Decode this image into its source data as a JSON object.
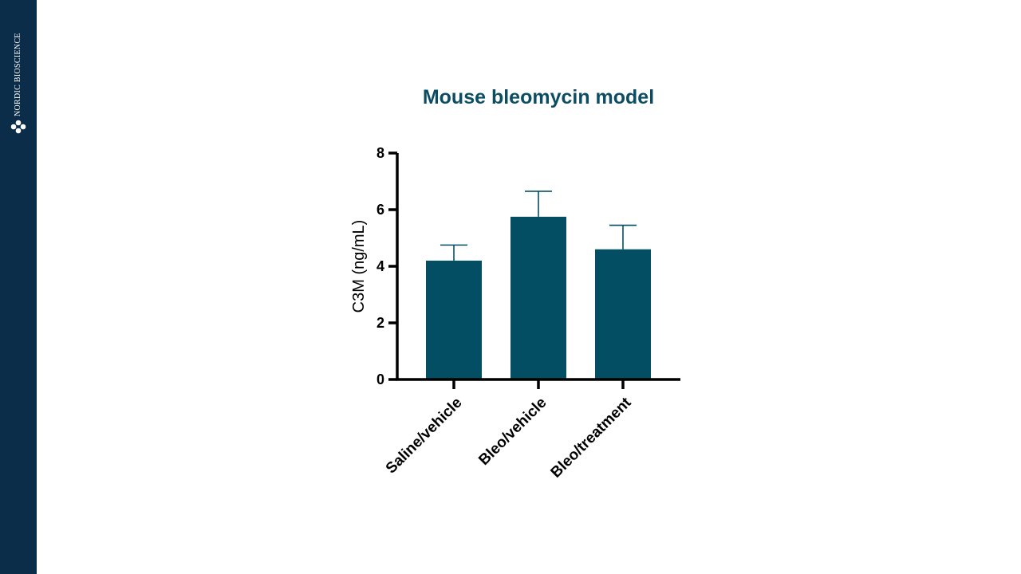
{
  "brand": {
    "name": "NORDIC BIOSCIENCE",
    "logo_icon": "molecule-logo-icon"
  },
  "colors": {
    "sidebar": "#0b2d4a",
    "bar": "#034e62",
    "title": "#0b4d63",
    "axis": "#000000"
  },
  "chart_data": {
    "type": "bar",
    "title": "Mouse bleomycin model",
    "xlabel": "",
    "ylabel": "C3M (ng/mL)",
    "categories": [
      "Saline/vehicle",
      "Bleo/vehicle",
      "Bleo/treatment"
    ],
    "values": [
      4.2,
      5.75,
      4.6
    ],
    "error_upper": [
      0.55,
      0.9,
      0.85
    ],
    "ylim": [
      0,
      8
    ],
    "yticks": [
      0,
      2,
      4,
      6,
      8
    ],
    "grid": false,
    "legend": "none"
  }
}
